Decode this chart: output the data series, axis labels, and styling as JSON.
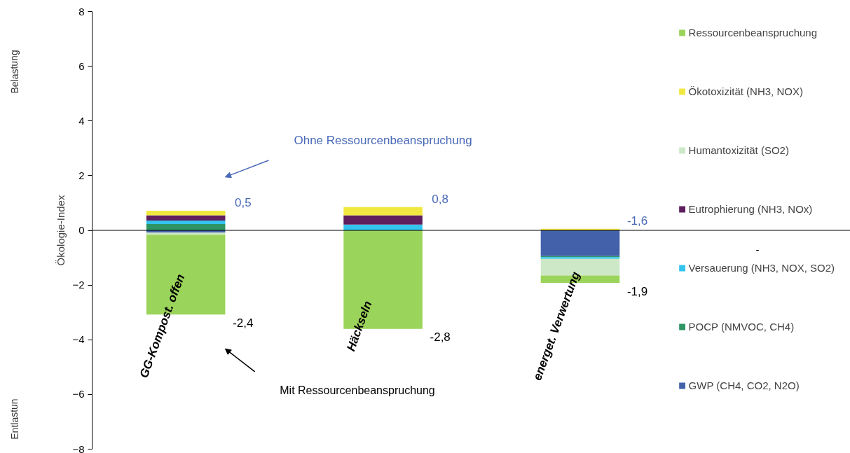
{
  "chart_data": {
    "type": "bar",
    "stacked": true,
    "ylabel": "Ökologie-Index",
    "legend": "right",
    "tick_labels": "y",
    "categories": [
      "GG-Kompost. offen",
      "Häckseln",
      "energet. Verwertung"
    ],
    "ylim": [
      -8,
      8
    ],
    "yticks": [
      -8,
      -6,
      -4,
      -2,
      0,
      2,
      4,
      6,
      8
    ],
    "series": [
      {
        "name": "GWP (CH4, CO2, N2O)",
        "color": "#4361ab",
        "values": [
          -0.08,
          0,
          -0.94
        ]
      },
      {
        "name": "POCP (NMVOC, CH4)",
        "color": "#2e9464",
        "values": [
          0.23,
          0,
          -0.04
        ]
      },
      {
        "name": "Versauerung (NH3, NOX, SO2)",
        "color": "#33c3ee",
        "values": [
          0.13,
          0.21,
          -0.06
        ]
      },
      {
        "name": "Eutrophierung (NH3, NOx)",
        "color": "#5f1e5d",
        "values": [
          0.19,
          0.34,
          0
        ]
      },
      {
        "name": "Humantoxizität (SO2)",
        "color": "#cde8c6",
        "values": [
          -0.08,
          0,
          -0.61
        ]
      },
      {
        "name": "Ökotoxizität (NH3, NOX)",
        "color": "#f0e840",
        "values": [
          0.17,
          0.3,
          0.06
        ]
      },
      {
        "name": "Ressourcenbeanspruchung",
        "color": "#9bd45a",
        "values": [
          -2.92,
          -3.6,
          -0.27
        ]
      }
    ],
    "annotations": [
      "0,5",
      "0,8",
      "-1,6",
      "-2,4",
      "-2,8",
      "-1,9",
      "Ohne Ressourcenbeanspruchung",
      "Mit Ressourcenbeanspruchung",
      "Belastung",
      "Entlastun",
      "-"
    ]
  }
}
